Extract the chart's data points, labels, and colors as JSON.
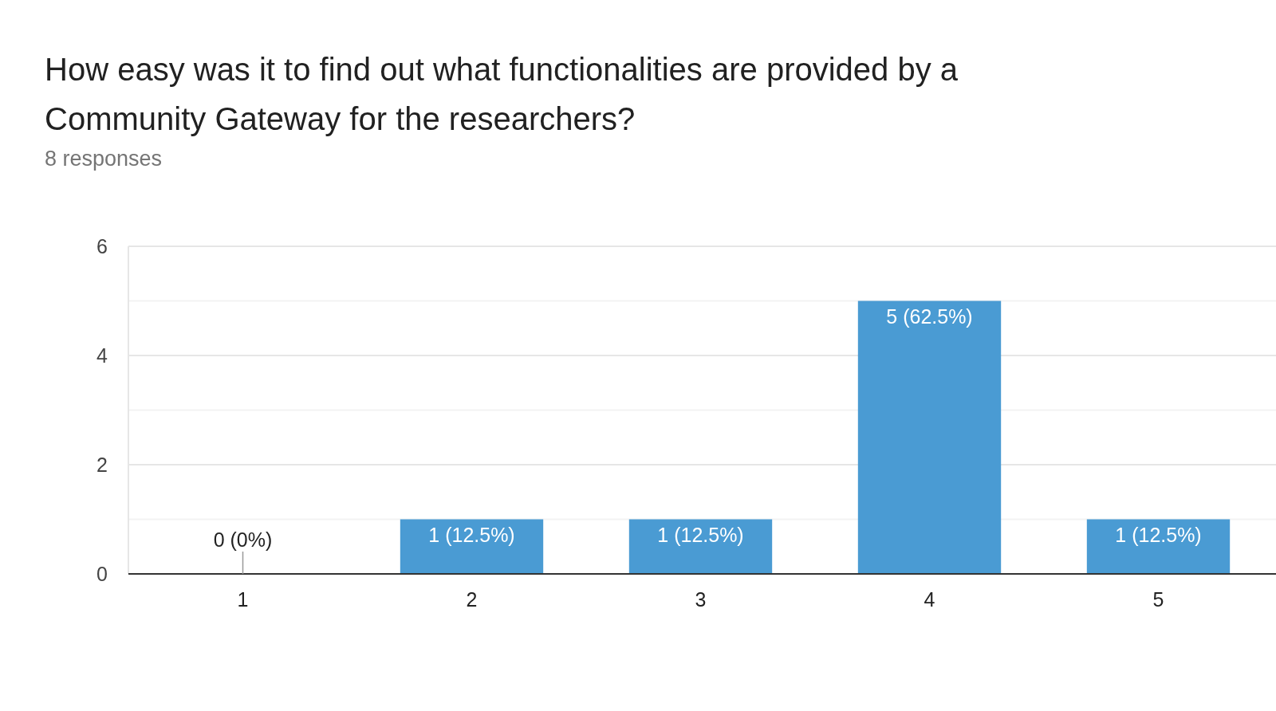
{
  "chart_data": {
    "type": "bar",
    "title": "How easy was it to find out what functionalities are provided by a Community Gateway for the researchers?",
    "subtitle": "8 responses",
    "categories": [
      "1",
      "2",
      "3",
      "4",
      "5"
    ],
    "values": [
      0,
      1,
      1,
      5,
      1
    ],
    "value_labels": [
      "0 (0%)",
      "1 (12.5%)",
      "1 (12.5%)",
      "5 (62.5%)",
      "1 (12.5%)"
    ],
    "color": "#4a9bd3",
    "ylim": [
      0,
      6
    ],
    "yticks": [
      0,
      {
        "value": 1,
        "label": null
      },
      2,
      {
        "value": 3,
        "label": null
      },
      4,
      {
        "value": 5,
        "label": null
      },
      6
    ],
    "grid": true
  }
}
